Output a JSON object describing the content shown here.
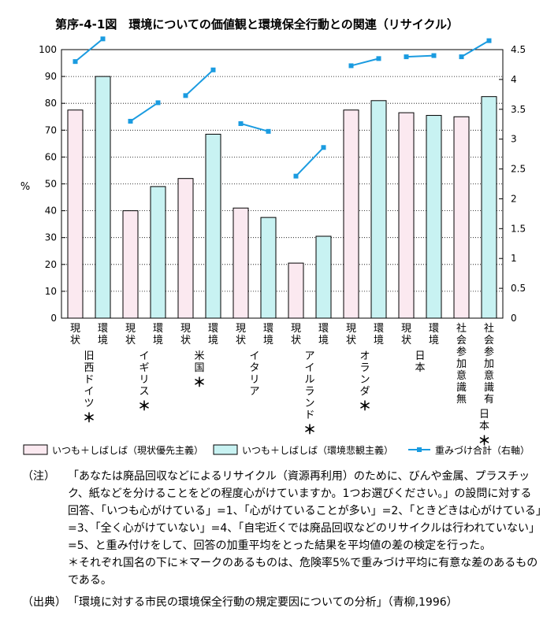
{
  "title": "第序-4-1図　環境についての価値観と環境保全行動との関連（リサイクル）",
  "chart_data": {
    "type": "bar",
    "ylabel": "%",
    "ylim": [
      0,
      100
    ],
    "y_ticks": [
      "0",
      "10",
      "20",
      "30",
      "40",
      "50",
      "60",
      "70",
      "80",
      "90",
      "100"
    ],
    "y2lim": [
      0,
      4.5
    ],
    "y2_ticks": [
      "0",
      "0.5",
      "1",
      "1.5",
      "2",
      "2.5",
      "3",
      "3.5",
      "4",
      "4.5"
    ],
    "grid": true,
    "bar_labels": [
      "現状",
      "環境",
      "現状",
      "環境",
      "現状",
      "環境",
      "現状",
      "環境",
      "現状",
      "環境",
      "現状",
      "環境",
      "現状",
      "環境",
      "社会参加意識無",
      "社会参加意識有"
    ],
    "groups": [
      {
        "label": "旧西ドイツ",
        "star": "＊"
      },
      {
        "label": "イギリス",
        "star": "＊"
      },
      {
        "label": "米国",
        "star": "＊"
      },
      {
        "label": "イタリア",
        "star": ""
      },
      {
        "label": "アイルランド",
        "star": "＊"
      },
      {
        "label": "オランダ",
        "star": "＊"
      },
      {
        "label": "日本",
        "star": ""
      },
      {
        "label": "日本",
        "star": "＊"
      }
    ],
    "series": [
      {
        "name": "いつも＋しばしば（現状優先主義）",
        "values": [
          77.5,
          40,
          52,
          41,
          20.5,
          77.5,
          76.5,
          75
        ],
        "color": "#fbe9f0"
      },
      {
        "name": "いつも＋しばしば（環境悲観主義）",
        "values": [
          90,
          49,
          68.5,
          37.5,
          30.5,
          81,
          75.5,
          82.5
        ],
        "color": "#c8f2f2"
      },
      {
        "name": "重みづけ合計（右軸）",
        "values": [
          4.3,
          4.68,
          3.3,
          3.61,
          3.73,
          4.16,
          3.26,
          3.13,
          2.38,
          2.86,
          4.23,
          4.35,
          4.38,
          4.4,
          4.38,
          4.65
        ],
        "color": "#1a9be0"
      }
    ]
  },
  "notes": {
    "note_tag": "（注）",
    "note_text": "「あなたは廃品回収などによるリサイクル（資源再利用）のために、びんや金属、プラスチック、紙などを分けることをどの程度心がけていますか。1つお選びください。」の設問に対する回答、「いつも心がけている」=1、「心がけていることが多い」=2、「ときどきは心がけている」=3、「全く心がけていない」=4、「自宅近くでは廃品回収などのリサイクルは行われていない」=5、と重み付けをして、回答の加重平均をとった結果を平均値の差の検定を行った。",
    "star_text": "＊それぞれ国名の下に＊マークのあるものは、危険率5%で重みづけ平均に有意な差のあるものである。",
    "source_tag": "（出典）",
    "source_text": "「環境に対する市民の環境保全行動の規定要因についての分析」（青柳,1996）"
  }
}
